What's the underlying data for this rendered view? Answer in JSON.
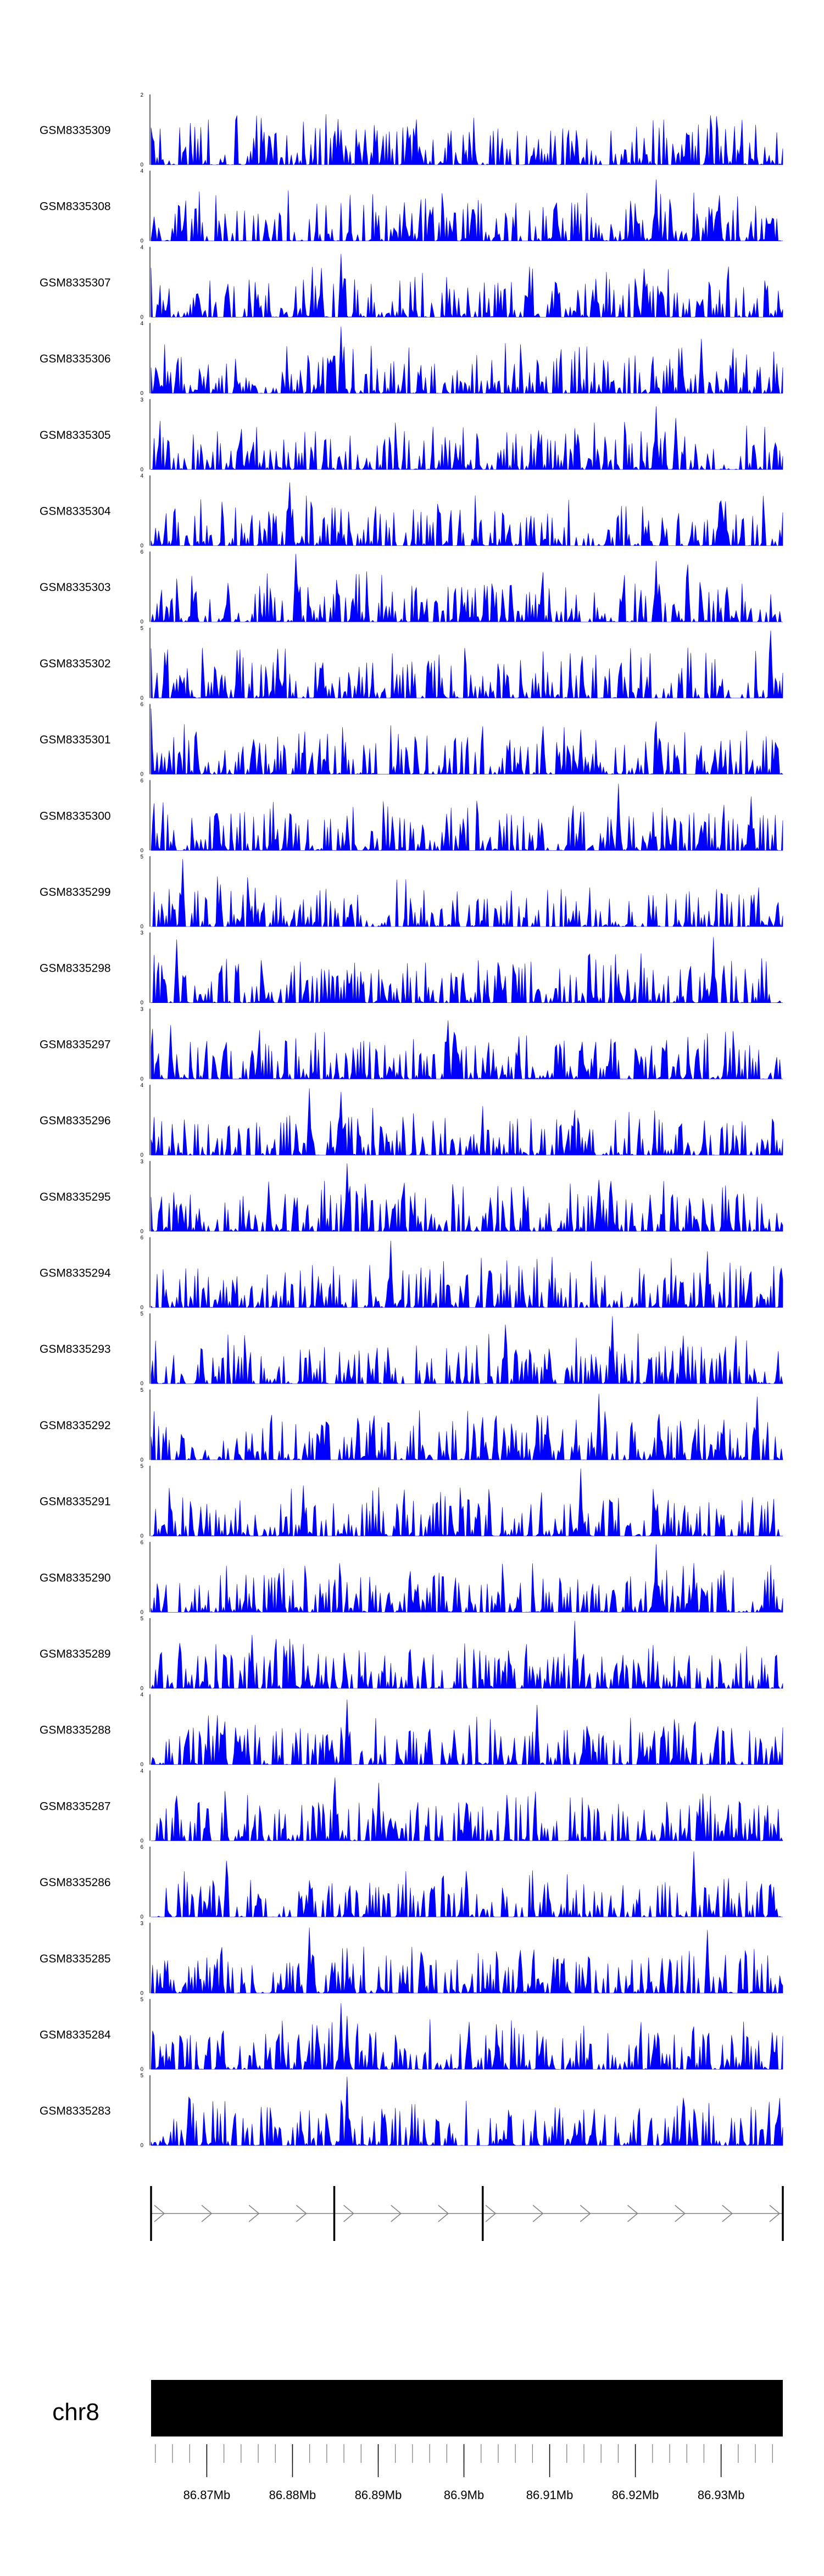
{
  "chart_data": {
    "type": "area",
    "tracks": [
      {
        "name": "GSM8335309",
        "ymax": "2",
        "ymin": "0",
        "max": 2,
        "peaks": [
          [
            0.34,
            1.0
          ],
          [
            0.3,
            1.0
          ],
          [
            0.29,
            0.95
          ],
          [
            0.34,
            0.9
          ]
        ]
      },
      {
        "name": "GSM8335308",
        "ymax": "4",
        "ymin": "0",
        "max": 4,
        "peaks": [
          [
            0.9,
            2.6
          ],
          [
            0.4,
            2.2
          ],
          [
            0.8,
            3.5
          ]
        ]
      },
      {
        "name": "GSM8335307",
        "ymax": "4",
        "ymin": "0",
        "max": 4,
        "peaks": [
          [
            0.3,
            3.6
          ],
          [
            0.27,
            2.8
          ],
          [
            0.6,
            2.4
          ]
        ]
      },
      {
        "name": "GSM8335306",
        "ymax": "4",
        "ymin": "0",
        "max": 4,
        "peaks": [
          [
            0.3,
            3.8
          ],
          [
            0.84,
            2.6
          ],
          [
            0.87,
            3.1
          ]
        ]
      },
      {
        "name": "GSM8335305",
        "ymax": "3",
        "ymin": "0",
        "max": 3,
        "peaks": [
          [
            0.8,
            2.7
          ],
          [
            0.83,
            2.2
          ]
        ]
      },
      {
        "name": "GSM8335304",
        "ymax": "4",
        "ymin": "0",
        "max": 4,
        "peaks": [
          [
            0.22,
            3.6
          ],
          [
            0.9,
            2.4
          ]
        ]
      },
      {
        "name": "GSM8335303",
        "ymax": "6",
        "ymin": "0",
        "max": 6,
        "peaks": [
          [
            0.23,
            5.8
          ],
          [
            0.8,
            5.2
          ],
          [
            0.85,
            4.9
          ]
        ]
      },
      {
        "name": "GSM8335302",
        "ymax": "5",
        "ymin": "0",
        "max": 5,
        "peaks": [
          [
            0.98,
            4.8
          ],
          [
            0.2,
            3.5
          ]
        ]
      },
      {
        "name": "GSM8335301",
        "ymax": "6",
        "ymin": "0",
        "max": 6,
        "peaks": [
          [
            0.0,
            5.6
          ],
          [
            0.8,
            4.5
          ],
          [
            0.68,
            3.8
          ]
        ]
      },
      {
        "name": "GSM8335300",
        "ymax": "6",
        "ymin": "0",
        "max": 6,
        "peaks": [
          [
            0.74,
            5.7
          ],
          [
            0.95,
            4.6
          ]
        ]
      },
      {
        "name": "GSM8335299",
        "ymax": "5",
        "ymin": "0",
        "max": 5,
        "peaks": [
          [
            0.05,
            4.8
          ],
          [
            0.11,
            3.0
          ]
        ]
      },
      {
        "name": "GSM8335298",
        "ymax": "3",
        "ymin": "0",
        "max": 3,
        "peaks": [
          [
            0.04,
            2.7
          ],
          [
            0.89,
            2.8
          ]
        ]
      },
      {
        "name": "GSM8335297",
        "ymax": "3",
        "ymin": "0",
        "max": 3,
        "peaks": [
          [
            0.03,
            2.3
          ],
          [
            0.47,
            2.5
          ],
          [
            0.48,
            2.0
          ]
        ]
      },
      {
        "name": "GSM8335296",
        "ymax": "4",
        "ymin": "0",
        "max": 4,
        "peaks": [
          [
            0.25,
            3.8
          ],
          [
            0.3,
            3.6
          ]
        ]
      },
      {
        "name": "GSM8335295",
        "ymax": "3",
        "ymin": "0",
        "max": 3,
        "peaks": [
          [
            0.31,
            2.9
          ],
          [
            0.71,
            2.2
          ]
        ]
      },
      {
        "name": "GSM8335294",
        "ymax": "6",
        "ymin": "0",
        "max": 6,
        "peaks": [
          [
            0.38,
            5.7
          ],
          [
            0.88,
            4.8
          ]
        ]
      },
      {
        "name": "GSM8335293",
        "ymax": "5",
        "ymin": "0",
        "max": 5,
        "peaks": [
          [
            0.73,
            4.8
          ],
          [
            0.56,
            4.2
          ]
        ]
      },
      {
        "name": "GSM8335292",
        "ymax": "5",
        "ymin": "0",
        "max": 5,
        "peaks": [
          [
            0.71,
            4.7
          ],
          [
            0.96,
            4.5
          ]
        ]
      },
      {
        "name": "GSM8335291",
        "ymax": "5",
        "ymin": "0",
        "max": 5,
        "peaks": [
          [
            0.68,
            4.8
          ],
          [
            0.24,
            3.6
          ]
        ]
      },
      {
        "name": "GSM8335290",
        "ymax": "6",
        "ymin": "0",
        "max": 6,
        "peaks": [
          [
            0.8,
            5.8
          ],
          [
            0.86,
            4.2
          ]
        ]
      },
      {
        "name": "GSM8335289",
        "ymax": "5",
        "ymin": "0",
        "max": 5,
        "peaks": [
          [
            0.67,
            4.8
          ],
          [
            0.16,
            3.8
          ]
        ]
      },
      {
        "name": "GSM8335288",
        "ymax": "4",
        "ymin": "0",
        "max": 4,
        "peaks": [
          [
            0.31,
            3.7
          ],
          [
            0.61,
            3.4
          ]
        ]
      },
      {
        "name": "GSM8335287",
        "ymax": "4",
        "ymin": "0",
        "max": 4,
        "peaks": [
          [
            0.29,
            3.6
          ],
          [
            0.36,
            3.3
          ]
        ]
      },
      {
        "name": "GSM8335286",
        "ymax": "6",
        "ymin": "0",
        "max": 6,
        "peaks": [
          [
            0.86,
            5.6
          ],
          [
            0.12,
            4.8
          ]
        ]
      },
      {
        "name": "GSM8335285",
        "ymax": "3",
        "ymin": "0",
        "max": 3,
        "peaks": [
          [
            0.25,
            2.8
          ],
          [
            0.88,
            2.7
          ]
        ]
      },
      {
        "name": "GSM8335284",
        "ymax": "5",
        "ymin": "0",
        "max": 5,
        "peaks": [
          [
            0.3,
            4.7
          ],
          [
            0.31,
            3.8
          ]
        ]
      },
      {
        "name": "GSM8335283",
        "ymax": "5",
        "ymin": "0",
        "max": 5,
        "peaks": [
          [
            0.31,
            4.9
          ],
          [
            0.67,
            1.6
          ]
        ]
      }
    ],
    "gene_model": {
      "strand": "+",
      "exon_marks": [
        0.0,
        0.29,
        0.525,
        1.0
      ]
    },
    "ideogram": {
      "chromosome": "chr8"
    },
    "x_axis": {
      "start": 86.8635,
      "end": 86.9372,
      "minor_step": 0.002,
      "ticks": [
        {
          "value": 86.87,
          "label": "86.87Mb"
        },
        {
          "value": 86.88,
          "label": "86.88Mb"
        },
        {
          "value": 86.89,
          "label": "86.89Mb"
        },
        {
          "value": 86.9,
          "label": "86.9Mb"
        },
        {
          "value": 86.91,
          "label": "86.91Mb"
        },
        {
          "value": 86.92,
          "label": "86.92Mb"
        },
        {
          "value": 86.93,
          "label": "86.93Mb"
        }
      ]
    },
    "colors": {
      "signal": "#0000ff",
      "axis": "#000000",
      "intron": "#808080",
      "ideogram": "#000000"
    }
  }
}
